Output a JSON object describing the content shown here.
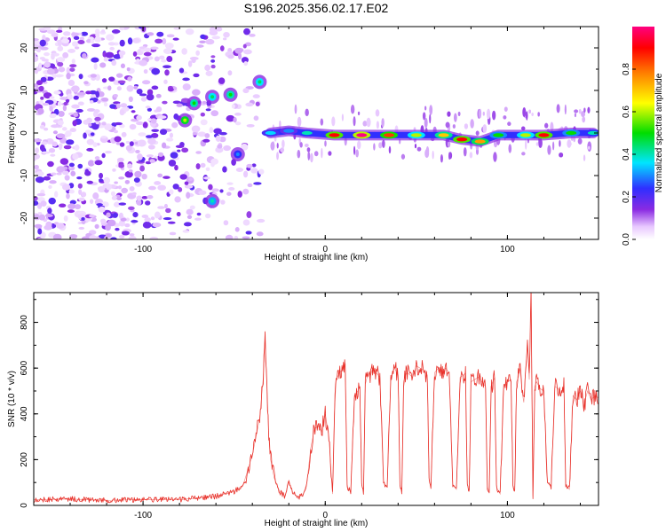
{
  "title": "S196.2025.356.02.17.E02",
  "chart_data": [
    {
      "type": "heatmap",
      "xlabel": "Height of straight line (km)",
      "ylabel": "Frequency (Hz)",
      "xlim": [
        -160,
        150
      ],
      "ylim": [
        -25,
        25
      ],
      "x_ticks": [
        -100,
        0,
        100
      ],
      "y_ticks": [
        -20,
        -10,
        0,
        10,
        20
      ],
      "colorbar": {
        "label": "Normalized spectral amplitude",
        "range": [
          0,
          1
        ],
        "ticks": [
          0.0,
          0.2,
          0.4,
          0.6,
          0.8
        ],
        "tick_labels": [
          "0.0",
          "0.2",
          "0.4",
          "0.6",
          "0.8"
        ],
        "colormap": [
          "#ffffff",
          "#e8c8ff",
          "#8a2be2",
          "#2f2fff",
          "#00e5ff",
          "#00dd00",
          "#ffff00",
          "#ff8000",
          "#ff0000",
          "#ff0080"
        ]
      },
      "ridge": [
        {
          "x": -30,
          "y": 0.0,
          "v": 0.35
        },
        {
          "x": -20,
          "y": 0.5,
          "v": 0.3
        },
        {
          "x": -10,
          "y": 0.0,
          "v": 0.4
        },
        {
          "x": 5,
          "y": -0.5,
          "v": 0.9
        },
        {
          "x": 20,
          "y": -0.5,
          "v": 1.0
        },
        {
          "x": 35,
          "y": -0.5,
          "v": 0.85
        },
        {
          "x": 50,
          "y": -0.5,
          "v": 0.6
        },
        {
          "x": 65,
          "y": -0.5,
          "v": 0.7
        },
        {
          "x": 75,
          "y": -1.5,
          "v": 0.9
        },
        {
          "x": 85,
          "y": -2.0,
          "v": 0.75
        },
        {
          "x": 95,
          "y": -0.5,
          "v": 0.5
        },
        {
          "x": 110,
          "y": -0.5,
          "v": 0.6
        },
        {
          "x": 120,
          "y": -0.5,
          "v": 0.9
        },
        {
          "x": 135,
          "y": 0.0,
          "v": 0.5
        },
        {
          "x": 147,
          "y": 0.0,
          "v": 0.4
        }
      ],
      "blobs": [
        {
          "x": -77,
          "y": 3,
          "v": 0.6
        },
        {
          "x": -72,
          "y": 7,
          "v": 0.5
        },
        {
          "x": -62,
          "y": 8.5,
          "v": 0.45
        },
        {
          "x": -52,
          "y": 9,
          "v": 0.5
        },
        {
          "x": -36,
          "y": 12,
          "v": 0.45
        },
        {
          "x": -62,
          "y": -16,
          "v": 0.4
        },
        {
          "x": -48,
          "y": -5,
          "v": 0.3
        }
      ]
    },
    {
      "type": "line",
      "xlabel": "Height of straight line (km)",
      "ylabel": "SNR (10 * v/v)",
      "xlim": [
        -160,
        150
      ],
      "ylim": [
        0,
        930
      ],
      "x_ticks": [
        -100,
        0,
        100
      ],
      "y_ticks": [
        0,
        200,
        400,
        600,
        800
      ],
      "series": [
        {
          "color": "#e8312a",
          "x": [
            -160,
            -140,
            -120,
            -100,
            -80,
            -70,
            -60,
            -50,
            -45,
            -40,
            -36,
            -34,
            -33,
            -32,
            -31,
            -30,
            -28,
            -25,
            -22,
            -20,
            -18,
            -15,
            -12,
            -10,
            -8,
            -6,
            -4,
            -2,
            0,
            2,
            4,
            5,
            6,
            8,
            10,
            11,
            12,
            14,
            16,
            18,
            19,
            20,
            21,
            22,
            23,
            24,
            25,
            26,
            28,
            30,
            32,
            34,
            36,
            37,
            38,
            40,
            41,
            42,
            43,
            44,
            45,
            48,
            50,
            52,
            54,
            56,
            57,
            58,
            60,
            62,
            64,
            65,
            66,
            68,
            70,
            72,
            74,
            76,
            77,
            78,
            79,
            80,
            82,
            84,
            86,
            88,
            89,
            90,
            91,
            92,
            93,
            94,
            96,
            98,
            100,
            102,
            103,
            104,
            105,
            106,
            107,
            108,
            109,
            110,
            111,
            112,
            113,
            114,
            115,
            116,
            118,
            120,
            122,
            124,
            126,
            128,
            129,
            130,
            131,
            132,
            134,
            136,
            138,
            140,
            141,
            142,
            143,
            144,
            146,
            148,
            150
          ],
          "y": [
            25,
            28,
            22,
            26,
            25,
            32,
            40,
            60,
            90,
            220,
            380,
            560,
            740,
            520,
            300,
            200,
            120,
            60,
            40,
            110,
            60,
            30,
            50,
            100,
            250,
            330,
            350,
            320,
            400,
            300,
            50,
            400,
            550,
            580,
            600,
            620,
            80,
            60,
            480,
            500,
            520,
            90,
            60,
            530,
            560,
            580,
            570,
            600,
            580,
            560,
            100,
            80,
            560,
            580,
            600,
            570,
            90,
            60,
            540,
            570,
            580,
            560,
            610,
            600,
            590,
            570,
            110,
            80,
            580,
            600,
            590,
            560,
            600,
            580,
            90,
            70,
            560,
            570,
            580,
            90,
            60,
            540,
            550,
            560,
            540,
            520,
            80,
            60,
            520,
            540,
            560,
            80,
            50,
            520,
            540,
            550,
            90,
            60,
            540,
            560,
            600,
            500,
            450,
            600,
            700,
            550,
            920,
            40,
            520,
            540,
            510,
            500,
            100,
            80,
            520,
            510,
            480,
            500,
            520,
            90,
            70,
            480,
            460,
            500,
            480,
            420,
            470,
            500,
            460,
            480,
            470
          ]
        }
      ]
    }
  ]
}
